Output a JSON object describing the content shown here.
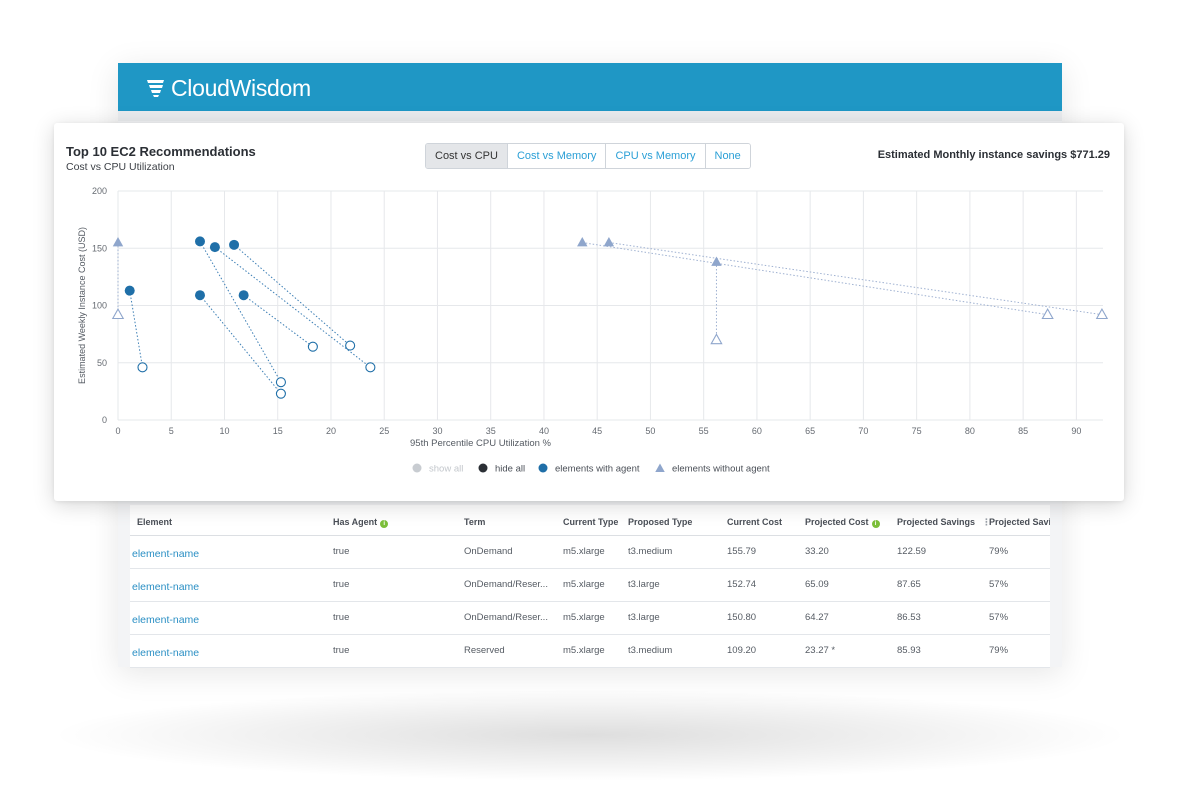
{
  "brand": {
    "name": "CloudWisdom"
  },
  "card": {
    "title": "Top 10 EC2 Recommendations",
    "subtitle": "Cost vs CPU Utilization",
    "savings": "Estimated Monthly instance savings $771.29"
  },
  "view_toggle": {
    "selected": "Cost vs CPU",
    "options": [
      "Cost vs CPU",
      "Cost vs Memory",
      "CPU vs Memory",
      "None"
    ]
  },
  "chart_data": {
    "type": "scatter",
    "title": "",
    "xlabel": "95th Percentile CPU Utilization %",
    "ylabel": "Estimated Weekly Instance Cost (USD)",
    "xlim": [
      0,
      92.5
    ],
    "ylim": [
      0,
      200
    ],
    "xticks": [
      0,
      5,
      10,
      15,
      20,
      25,
      30,
      35,
      40,
      45,
      50,
      55,
      60,
      65,
      70,
      75,
      80,
      85,
      90
    ],
    "yticks": [
      0,
      50,
      100,
      150,
      200
    ],
    "grid": true,
    "legend": {
      "placement": "bottom",
      "items": [
        {
          "label": "show all",
          "marker": "circle",
          "color": "#c8ccd1",
          "muted": true
        },
        {
          "label": "hide all",
          "marker": "circle",
          "color": "#2b2f35"
        },
        {
          "label": "elements with agent",
          "marker": "circle",
          "color": "#1f6fa8"
        },
        {
          "label": "elements without agent",
          "marker": "triangle",
          "color": "#8fa6cc"
        }
      ]
    },
    "series": [
      {
        "name": "elements with agent",
        "marker": "circle",
        "color": "#1f6fa8",
        "current": [
          [
            7.7,
            156
          ],
          [
            9.1,
            151
          ],
          [
            10.9,
            153
          ],
          [
            1.1,
            113
          ],
          [
            7.7,
            109
          ],
          [
            11.8,
            109
          ]
        ],
        "proposed": [
          [
            15.3,
            33
          ],
          [
            23.7,
            46
          ],
          [
            21.8,
            65
          ],
          [
            2.3,
            46
          ],
          [
            15.3,
            23
          ],
          [
            18.3,
            64
          ]
        ]
      },
      {
        "name": "elements without agent",
        "marker": "triangle",
        "color": "#8fa6cc",
        "current": [
          [
            0,
            155
          ],
          [
            43.6,
            155
          ],
          [
            46.1,
            155
          ],
          [
            56.2,
            138
          ]
        ],
        "proposed": [
          [
            0,
            92
          ],
          [
            87.3,
            92
          ],
          [
            92.4,
            92
          ],
          [
            56.2,
            70
          ]
        ]
      }
    ]
  },
  "table": {
    "columns": [
      "Element",
      "Has Agent",
      "Term",
      "Current Type",
      "Proposed Type",
      "Current Cost",
      "Projected Cost",
      "Projected Savings",
      "Projected Savi"
    ],
    "rows": [
      [
        "element-name",
        "true",
        "OnDemand",
        "m5.xlarge",
        "t3.medium",
        "155.79",
        "33.20",
        "122.59",
        "79%"
      ],
      [
        "element-name",
        "true",
        "OnDemand/Reser...",
        "m5.xlarge",
        "t3.large",
        "152.74",
        "65.09",
        "87.65",
        "57%"
      ],
      [
        "element-name",
        "true",
        "OnDemand/Reser...",
        "m5.xlarge",
        "t3.large",
        "150.80",
        "64.27",
        "86.53",
        "57%"
      ],
      [
        "element-name",
        "true",
        "Reserved",
        "m5.xlarge",
        "t3.medium",
        "109.20",
        "23.27 *",
        "85.93",
        "79%"
      ]
    ]
  }
}
